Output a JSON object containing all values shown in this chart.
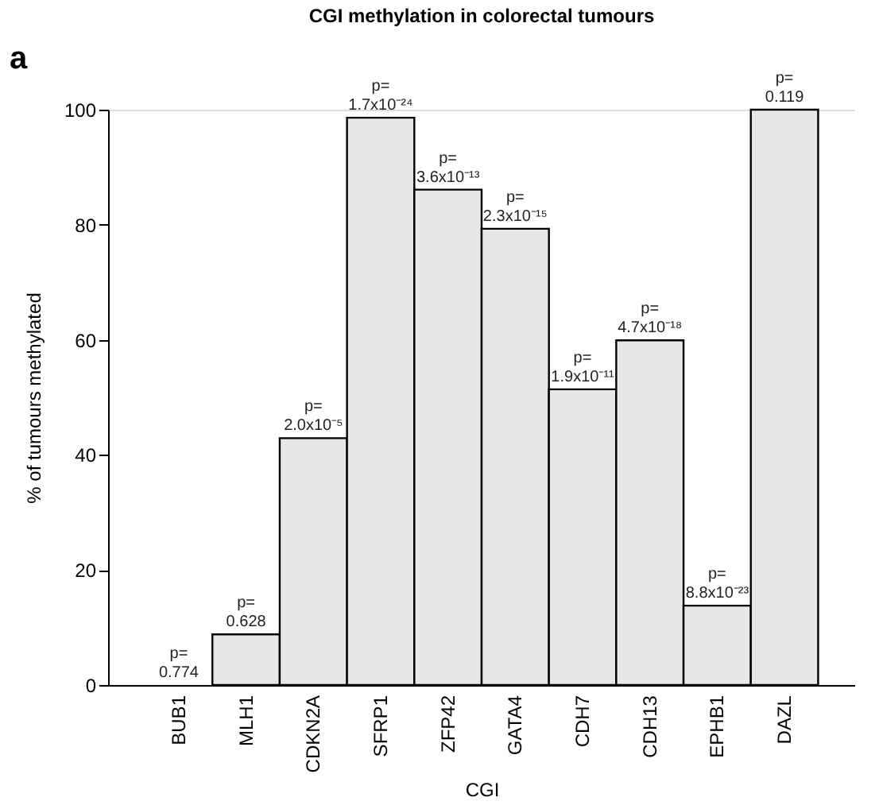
{
  "chart_data": {
    "type": "bar",
    "title": "CGI methylation in colorectal tumours",
    "xlabel": "CGI",
    "ylabel": "% of tumours methylated",
    "categories": [
      "BUB1",
      "MLH1",
      "CDKN2A",
      "SFRP1",
      "ZFP42",
      "GATA4",
      "CDH7",
      "CDH13",
      "EPHB1",
      "DAZL"
    ],
    "values": [
      0,
      8.8,
      42.9,
      98.6,
      86.1,
      79.3,
      51.4,
      59.9,
      13.8,
      100
    ],
    "color": "#e6e7e8",
    "ylim": [
      0,
      100
    ],
    "yticks": [
      0,
      20,
      40,
      60,
      80,
      100
    ],
    "grid": false,
    "annotations": [
      "a",
      {
        "text": "p=\n0.774",
        "x": "BUB1",
        "y": 0
      },
      {
        "text": "p=\n0.628",
        "x": "MLH1",
        "y": 8.8
      },
      {
        "text": "p=\n2.0x10⁻⁵",
        "x": "CDKN2A",
        "y": 42.9
      },
      {
        "text": "p=\n1.7x10⁻²⁴",
        "x": "SFRP1",
        "y": 98.6
      },
      {
        "text": "p=\n3.6x10⁻¹³",
        "x": "ZFP42",
        "y": 86.1
      },
      {
        "text": "p=\n2.3x10⁻¹⁵",
        "x": "GATA4",
        "y": 79.3
      },
      {
        "text": "p=\n1.9x10⁻¹¹",
        "x": "CDH7",
        "y": 51.4
      },
      {
        "text": "p=\n4.7x10⁻¹⁸",
        "x": "CDH13",
        "y": 59.9
      },
      {
        "text": "p=\n8.8x10⁻²³",
        "x": "EPHB1",
        "y": 13.8
      },
      {
        "text": "p=\n0.119",
        "x": "DAZL",
        "y": 100
      }
    ]
  }
}
